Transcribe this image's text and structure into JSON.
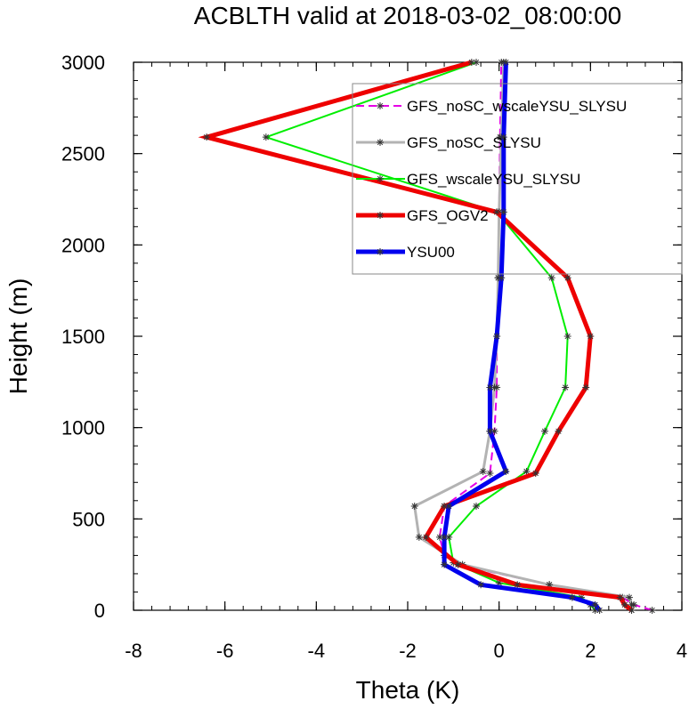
{
  "chart_data": {
    "type": "line",
    "title": "ACBLTH valid at 2018-03-02_08:00:00",
    "xlabel": "Theta (K)",
    "ylabel": "Height (m)",
    "xlim": [
      -8,
      4
    ],
    "ylim": [
      0,
      3000
    ],
    "xticks": [
      -8,
      -6,
      -4,
      -2,
      0,
      2,
      4
    ],
    "yticks": [
      0,
      500,
      1000,
      1500,
      2000,
      2500,
      3000
    ],
    "xtick_labels": [
      "-8",
      "-6",
      "-4",
      "-2",
      "0",
      "2",
      "4"
    ],
    "ytick_labels": [
      "0",
      "500",
      "1000",
      "1500",
      "2000",
      "2500",
      "3000"
    ],
    "grid": false,
    "legend_position": "top-right",
    "series": [
      {
        "name": "GFS_noSC_wscaleYSU_SLYSU",
        "color": "#e600e6",
        "dash": "dashed",
        "width": "thin",
        "points": [
          [
            3.35,
            0
          ],
          [
            2.95,
            30
          ],
          [
            2.7,
            70
          ],
          [
            1.1,
            140
          ],
          [
            -0.9,
            250
          ],
          [
            -1.2,
            300
          ],
          [
            -1.3,
            400
          ],
          [
            -1.2,
            570
          ],
          [
            -0.2,
            750
          ],
          [
            -0.1,
            980
          ],
          [
            -0.05,
            1220
          ],
          [
            -0.05,
            1500
          ],
          [
            -0.02,
            1820
          ],
          [
            0.0,
            2180
          ],
          [
            0.02,
            2590
          ],
          [
            0.05,
            3000
          ]
        ]
      },
      {
        "name": "GFS_noSC_SLYSU",
        "color": "#b3b3b3",
        "dash": "solid",
        "width": "medium",
        "points": [
          [
            2.9,
            0
          ],
          [
            2.9,
            30
          ],
          [
            2.85,
            70
          ],
          [
            1.1,
            140
          ],
          [
            -0.8,
            250
          ],
          [
            -1.75,
            400
          ],
          [
            -1.85,
            570
          ],
          [
            -0.35,
            760
          ],
          [
            -0.2,
            980
          ],
          [
            -0.1,
            1220
          ],
          [
            -0.05,
            1500
          ],
          [
            -0.02,
            1820
          ],
          [
            0.0,
            2180
          ],
          [
            0.05,
            2590
          ],
          [
            0.1,
            3000
          ]
        ]
      },
      {
        "name": "GFS_wscaleYSU_SLYSU",
        "color": "#00ee00",
        "dash": "solid",
        "width": "thin",
        "points": [
          [
            2.1,
            0
          ],
          [
            2.0,
            30
          ],
          [
            1.8,
            70
          ],
          [
            0.0,
            150
          ],
          [
            -1.0,
            260
          ],
          [
            -1.1,
            400
          ],
          [
            -0.5,
            570
          ],
          [
            0.6,
            760
          ],
          [
            1.0,
            980
          ],
          [
            1.45,
            1220
          ],
          [
            1.5,
            1500
          ],
          [
            1.15,
            1820
          ],
          [
            -0.05,
            2180
          ],
          [
            -5.1,
            2590
          ],
          [
            -0.5,
            3000
          ]
        ]
      },
      {
        "name": "GFS_OGV2",
        "color": "#ee0000",
        "dash": "solid",
        "width": "thick",
        "points": [
          [
            2.9,
            0
          ],
          [
            2.75,
            30
          ],
          [
            2.65,
            70
          ],
          [
            0.4,
            140
          ],
          [
            -0.9,
            250
          ],
          [
            -1.6,
            400
          ],
          [
            -1.2,
            570
          ],
          [
            0.8,
            750
          ],
          [
            1.3,
            980
          ],
          [
            1.9,
            1220
          ],
          [
            2.0,
            1500
          ],
          [
            1.5,
            1820
          ],
          [
            -0.05,
            2180
          ],
          [
            -6.4,
            2590
          ],
          [
            -0.6,
            3000
          ]
        ]
      },
      {
        "name": "YSU00",
        "color": "#0000ee",
        "dash": "solid",
        "width": "thick",
        "points": [
          [
            2.2,
            0
          ],
          [
            2.1,
            30
          ],
          [
            1.6,
            70
          ],
          [
            -0.4,
            140
          ],
          [
            -1.2,
            250
          ],
          [
            -1.2,
            400
          ],
          [
            -1.1,
            570
          ],
          [
            0.15,
            760
          ],
          [
            -0.2,
            980
          ],
          [
            -0.2,
            1220
          ],
          [
            -0.05,
            1500
          ],
          [
            0.05,
            1820
          ],
          [
            0.1,
            2180
          ],
          [
            0.1,
            2590
          ],
          [
            0.15,
            3000
          ]
        ]
      }
    ]
  }
}
